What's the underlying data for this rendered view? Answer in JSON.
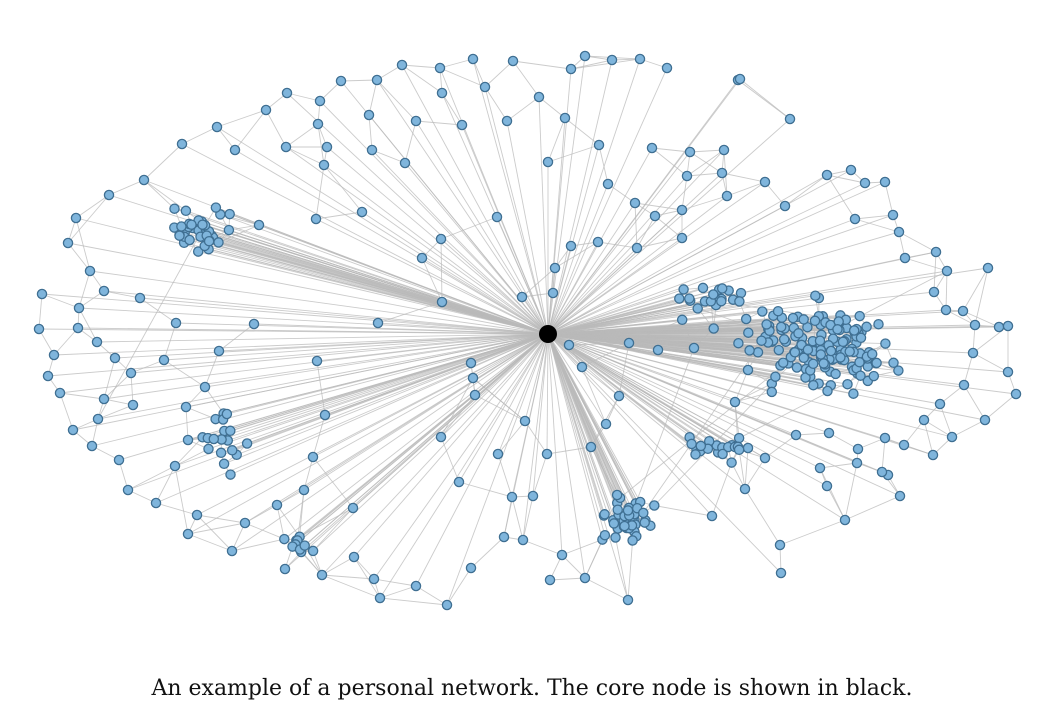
{
  "figure": {
    "caption": "An example of a personal network. The core node is shown in black.",
    "node_color": "#7fb5dc",
    "node_outline_color": "#3f6f92",
    "core_node_color": "#000000",
    "edge_color": "#b9b9b9",
    "background_color": "#ffffff"
  }
}
